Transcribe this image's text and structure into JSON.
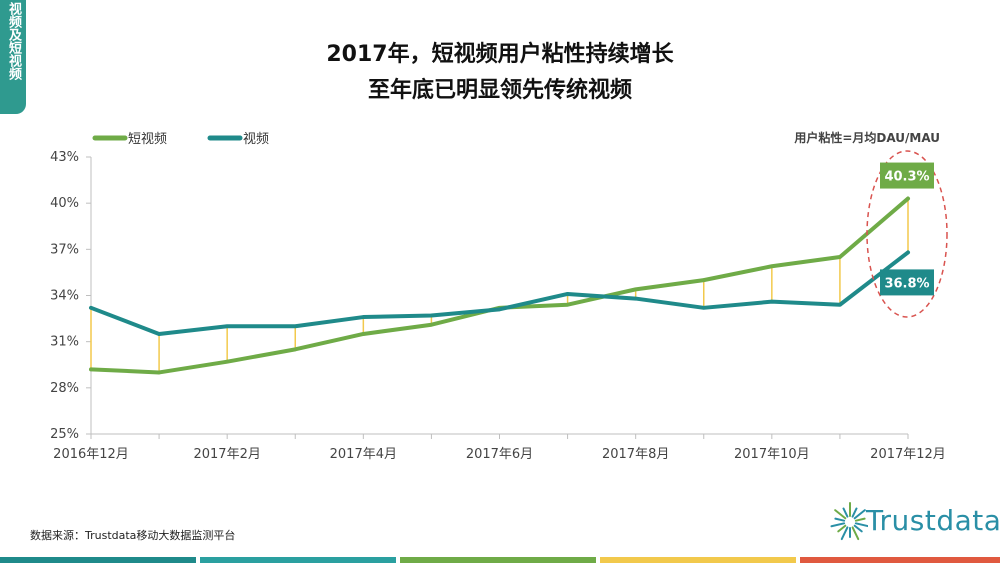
{
  "side_tab": "视频及短视频",
  "title_line1": "2017年，短视频用户粘性持续增长",
  "title_line2": "至年底已明显领先传统视频",
  "metric_note": "用户粘性=月均DAU/MAU",
  "source": "数据来源：Trustdata移动大数据监测平台",
  "logo_text": "Trustdata",
  "colors": {
    "short_video": "#6fab47",
    "video": "#1f8a8a",
    "connector": "#f2c94c",
    "highlight": "#d9534f"
  },
  "chart_data": {
    "type": "line",
    "x": [
      "2016年12月",
      "2017年1月",
      "2017年2月",
      "2017年3月",
      "2017年4月",
      "2017年5月",
      "2017年6月",
      "2017年7月",
      "2017年8月",
      "2017年9月",
      "2017年10月",
      "2017年11月",
      "2017年12月"
    ],
    "x_tick_labels": [
      "2016年12月",
      "2017年2月",
      "2017年4月",
      "2017年6月",
      "2017年8月",
      "2017年10月",
      "2017年12月"
    ],
    "series": [
      {
        "name": "短视频",
        "values": [
          29.2,
          29.0,
          29.7,
          30.5,
          31.5,
          32.1,
          33.2,
          33.4,
          34.4,
          35.0,
          35.9,
          36.5,
          40.3
        ]
      },
      {
        "name": "视频",
        "values": [
          33.2,
          31.5,
          32.0,
          32.0,
          32.6,
          32.7,
          33.1,
          34.1,
          33.8,
          33.2,
          33.6,
          33.4,
          36.8
        ]
      }
    ],
    "data_labels": [
      "40.3%",
      "36.8%"
    ],
    "y_ticks": [
      "43%",
      "40%",
      "37%",
      "34%",
      "31%",
      "28%",
      "25%"
    ],
    "ylim": [
      25,
      43
    ],
    "legend": "top-left",
    "grid": false
  }
}
